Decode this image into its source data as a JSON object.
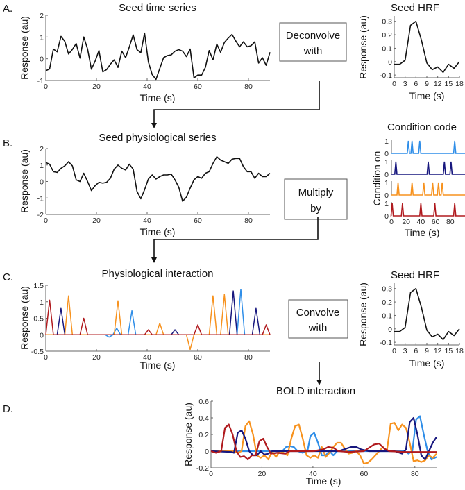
{
  "colors": {
    "blue": "#2f8ee8",
    "navy": "#17177e",
    "orange": "#f7921e",
    "red": "#b01a1e",
    "line": "#111111"
  },
  "panel_labels": [
    "A.",
    "B.",
    "C.",
    "D."
  ],
  "operations": {
    "deconvolve": [
      "Deconvolve",
      "with"
    ],
    "multiply": [
      "Multiply",
      "by"
    ],
    "convolve": [
      "Convolve",
      "with"
    ]
  },
  "chart_data": [
    {
      "id": "seed_time_series",
      "type": "line",
      "title": "Seed time series",
      "xlabel": "Time (s)",
      "ylabel": "Response (au)",
      "xlim": [
        0,
        88.5
      ],
      "ylim": [
        -1,
        2
      ],
      "xticks": [
        0,
        20,
        40,
        60,
        80
      ],
      "yticks": [
        -1,
        0,
        1,
        2
      ],
      "dt": 1.5,
      "series": [
        {
          "name": "seed",
          "color": "line",
          "values": [
            -0.55,
            -0.47,
            0.45,
            0.32,
            1.03,
            0.8,
            0.22,
            0.43,
            0.7,
            0.03,
            1.0,
            0.45,
            -0.48,
            -0.1,
            0.38,
            -0.6,
            -0.5,
            -0.25,
            -0.05,
            -0.4,
            0.35,
            0.05,
            0.55,
            1.1,
            0.42,
            0.28,
            1.18,
            -0.15,
            -0.73,
            -0.95,
            -0.45,
            0.05,
            0.15,
            0.18,
            0.35,
            0.42,
            0.35,
            0.1,
            0.45,
            -0.88,
            -0.75,
            -0.75,
            -0.4,
            0.38,
            -0.05,
            0.68,
            0.3,
            0.75,
            0.95,
            1.12,
            0.82,
            0.55,
            0.78,
            0.55,
            0.6,
            0.78,
            -0.2,
            0.05,
            -0.3,
            0.3
          ]
        }
      ]
    },
    {
      "id": "seed_hrf_a",
      "type": "line",
      "title": "Seed HRF",
      "xlabel": "Time (s)",
      "ylabel": "Response (au)",
      "xlim": [
        0,
        18
      ],
      "ylim": [
        -0.12,
        0.34
      ],
      "xticks": [
        0,
        3,
        6,
        9,
        12,
        15,
        18
      ],
      "yticks": [
        -0.1,
        0,
        0.1,
        0.2,
        0.3
      ],
      "dt": 1.5,
      "series": [
        {
          "name": "hrf",
          "color": "line",
          "values": [
            -0.02,
            -0.02,
            0.01,
            0.27,
            0.3,
            0.16,
            -0.01,
            -0.06,
            -0.04,
            -0.08,
            -0.02,
            -0.05,
            0.0
          ]
        }
      ]
    },
    {
      "id": "seed_physiological_series",
      "type": "line",
      "title": "Seed physiological series",
      "xlabel": "Time (s)",
      "ylabel": "Response (au)",
      "xlim": [
        0,
        88.5
      ],
      "ylim": [
        -2,
        2
      ],
      "xticks": [
        0,
        20,
        40,
        60,
        80
      ],
      "yticks": [
        -2,
        -1,
        0,
        1,
        2
      ],
      "dt": 1.5,
      "series": [
        {
          "name": "physio",
          "color": "line",
          "values": [
            1.15,
            1.05,
            0.6,
            0.55,
            0.8,
            0.95,
            1.2,
            0.95,
            0.1,
            0.0,
            0.5,
            0.0,
            -0.55,
            -0.25,
            -0.05,
            -0.1,
            -0.05,
            0.2,
            0.75,
            1.0,
            0.8,
            0.7,
            1.05,
            0.75,
            -0.6,
            -1.05,
            -0.5,
            0.15,
            0.4,
            0.15,
            0.3,
            0.4,
            0.4,
            0.45,
            0.1,
            -0.35,
            -1.2,
            -0.95,
            -0.4,
            0.1,
            0.3,
            0.2,
            0.5,
            0.6,
            1.1,
            1.5,
            1.3,
            1.2,
            1.1,
            1.35,
            1.4,
            1.4,
            0.9,
            0.6,
            0.6,
            0.2,
            0.5,
            0.3,
            0.3,
            0.5
          ]
        }
      ]
    },
    {
      "id": "condition_code",
      "type": "line",
      "title": "Condition code",
      "xlabel": "Time (s)",
      "ylabel": "Condition on",
      "xlim": [
        0,
        100
      ],
      "ylim": [
        0,
        1
      ],
      "xticks": [
        0,
        20,
        40,
        60,
        80
      ],
      "yticks": [
        0,
        1
      ],
      "series": [
        {
          "name": "condition 1",
          "color": "blue",
          "onsets": [
            23,
            28,
            38.5,
            86
          ]
        },
        {
          "name": "condition 2",
          "color": "navy",
          "onsets": [
            6,
            50,
            72,
            81
          ]
        },
        {
          "name": "condition 3",
          "color": "orange",
          "onsets": [
            9,
            28,
            44,
            56,
            64,
            69
          ]
        },
        {
          "name": "condition 4",
          "color": "red",
          "onsets": [
            1,
            15,
            40,
            59,
            86
          ]
        }
      ]
    },
    {
      "id": "physiological_interaction",
      "type": "line",
      "title": "Physiological interaction",
      "xlabel": "Time (s)",
      "ylabel": "Response (au)",
      "xlim": [
        0,
        88.5
      ],
      "ylim": [
        -0.5,
        1.5
      ],
      "xticks": [
        0,
        20,
        40,
        60,
        80
      ],
      "yticks": [
        -0.5,
        0,
        0.5,
        1,
        1.5
      ],
      "series": [
        {
          "name": "condition 1",
          "color": "blue",
          "peaks": [
            [
              25,
              -0.07
            ],
            [
              28,
              0.2
            ],
            [
              34,
              0.73
            ],
            [
              77,
              1.38
            ]
          ]
        },
        {
          "name": "condition 2",
          "color": "navy",
          "peaks": [
            [
              6,
              0.8
            ],
            [
              51,
              0.15
            ],
            [
              74,
              1.33
            ],
            [
              83,
              0.8
            ]
          ]
        },
        {
          "name": "condition 3",
          "color": "orange",
          "peaks": [
            [
              9,
              1.18
            ],
            [
              28.5,
              1.03
            ],
            [
              45,
              0.35
            ],
            [
              57,
              -0.45
            ],
            [
              66,
              1.18
            ],
            [
              70.5,
              1.22
            ]
          ]
        },
        {
          "name": "condition 4",
          "color": "red",
          "peaks": [
            [
              1.5,
              1.05
            ],
            [
              15,
              0.5
            ],
            [
              40.5,
              0.15
            ],
            [
              60,
              0.3
            ],
            [
              87,
              0.3
            ]
          ]
        }
      ]
    },
    {
      "id": "seed_hrf_c",
      "type": "line",
      "title": "Seed HRF",
      "xlabel": "Time (s)",
      "ylabel": "Response (au)",
      "xlim": [
        0,
        18
      ],
      "ylim": [
        -0.12,
        0.34
      ],
      "xticks": [
        0,
        3,
        6,
        9,
        12,
        15,
        18
      ],
      "yticks": [
        -0.1,
        0,
        0.1,
        0.2,
        0.3
      ],
      "dt": 1.5,
      "series": [
        {
          "name": "hrf",
          "color": "line",
          "values": [
            -0.02,
            -0.02,
            0.01,
            0.27,
            0.3,
            0.16,
            -0.01,
            -0.06,
            -0.04,
            -0.08,
            -0.02,
            -0.05,
            0.0
          ]
        }
      ]
    },
    {
      "id": "bold_interaction",
      "type": "line",
      "title": "BOLD interaction",
      "xlabel": "Time (s)",
      "ylabel": "Response (au)",
      "xlim": [
        0,
        88.5
      ],
      "ylim": [
        -0.2,
        0.6
      ],
      "xticks": [
        0,
        20,
        40,
        60,
        80
      ],
      "yticks": [
        -0.2,
        0,
        0.2,
        0.4,
        0.6
      ],
      "series": [
        {
          "name": "condition 1",
          "color": "blue",
          "points": [
            [
              0,
              0
            ],
            [
              28,
              0
            ],
            [
              29.5,
              0.05
            ],
            [
              31,
              0.06
            ],
            [
              32.5,
              0.05
            ],
            [
              34,
              0
            ],
            [
              36,
              -0.02
            ],
            [
              38,
              0.02
            ],
            [
              39,
              0.18
            ],
            [
              40.5,
              0.22
            ],
            [
              42,
              0.1
            ],
            [
              43.5,
              -0.05
            ],
            [
              45,
              -0.05
            ],
            [
              46.5,
              0
            ],
            [
              48,
              -0.05
            ],
            [
              49.5,
              0
            ],
            [
              52,
              0
            ],
            [
              76,
              0
            ],
            [
              77.5,
              -0.03
            ],
            [
              79,
              0
            ],
            [
              80.5,
              0.38
            ],
            [
              82,
              0.42
            ],
            [
              83.5,
              0.2
            ],
            [
              85,
              0
            ],
            [
              86.5,
              -0.1
            ],
            [
              88.5,
              -0.07
            ]
          ]
        },
        {
          "name": "condition 3",
          "color": "orange",
          "points": [
            [
              0,
              0
            ],
            [
              9,
              0
            ],
            [
              10.5,
              -0.02
            ],
            [
              12,
              0
            ],
            [
              13.5,
              0.3
            ],
            [
              15,
              0.36
            ],
            [
              16.5,
              0.2
            ],
            [
              18,
              -0.05
            ],
            [
              19.5,
              -0.08
            ],
            [
              21,
              -0.05
            ],
            [
              22.5,
              -0.1
            ],
            [
              24,
              0
            ],
            [
              25.5,
              -0.07
            ],
            [
              27,
              0
            ],
            [
              28.5,
              -0.02
            ],
            [
              30,
              -0.05
            ],
            [
              31.5,
              0.15
            ],
            [
              33,
              0.3
            ],
            [
              34.5,
              0.32
            ],
            [
              36,
              0.15
            ],
            [
              37.5,
              -0.05
            ],
            [
              39,
              -0.08
            ],
            [
              40.5,
              -0.05
            ],
            [
              42,
              -0.08
            ],
            [
              43.5,
              0.05
            ],
            [
              45,
              -0.07
            ],
            [
              46.5,
              -0.02
            ],
            [
              48,
              0.05
            ],
            [
              49.5,
              0.1
            ],
            [
              51,
              0.1
            ],
            [
              52.5,
              0.03
            ],
            [
              54,
              -0.03
            ],
            [
              55.5,
              -0.02
            ],
            [
              57,
              0
            ],
            [
              58.5,
              -0.05
            ],
            [
              60,
              -0.15
            ],
            [
              61.5,
              -0.14
            ],
            [
              63,
              -0.1
            ],
            [
              64.5,
              -0.05
            ],
            [
              66,
              0
            ],
            [
              67.5,
              0.05
            ],
            [
              69,
              0
            ],
            [
              70.5,
              0.33
            ],
            [
              72,
              0.34
            ],
            [
              73.5,
              0.25
            ],
            [
              75,
              0.32
            ],
            [
              76.5,
              0.28
            ],
            [
              78,
              0.1
            ],
            [
              79.5,
              -0.12
            ],
            [
              81,
              -0.11
            ],
            [
              82.5,
              -0.13
            ],
            [
              84,
              -0.11
            ],
            [
              85.5,
              -0.05
            ],
            [
              87,
              -0.08
            ],
            [
              88.5,
              -0.03
            ]
          ]
        },
        {
          "name": "condition 2",
          "color": "navy",
          "points": [
            [
              0,
              0
            ],
            [
              8,
              -0.01
            ],
            [
              9,
              -0.02
            ],
            [
              10.5,
              0.22
            ],
            [
              12,
              0.25
            ],
            [
              13.5,
              0.15
            ],
            [
              15,
              0
            ],
            [
              16.5,
              -0.05
            ],
            [
              18,
              -0.05
            ],
            [
              19.5,
              0
            ],
            [
              21,
              -0.04
            ],
            [
              22.5,
              -0.03
            ],
            [
              24,
              0
            ],
            [
              50,
              0
            ],
            [
              53,
              0.03
            ],
            [
              55,
              0.05
            ],
            [
              57,
              0.05
            ],
            [
              59,
              0.02
            ],
            [
              62,
              0
            ],
            [
              72,
              0
            ],
            [
              75,
              -0.03
            ],
            [
              76.5,
              0.02
            ],
            [
              78,
              0.35
            ],
            [
              79.5,
              0.4
            ],
            [
              81,
              0.2
            ],
            [
              82.5,
              -0.05
            ],
            [
              84,
              -0.1
            ],
            [
              85.5,
              0
            ],
            [
              87,
              0.1
            ],
            [
              88.5,
              0.17
            ]
          ]
        },
        {
          "name": "condition 4",
          "color": "red",
          "points": [
            [
              0,
              0
            ],
            [
              2,
              -0.02
            ],
            [
              4,
              0
            ],
            [
              5.5,
              0.28
            ],
            [
              7,
              0.32
            ],
            [
              8.5,
              0.2
            ],
            [
              10,
              0
            ],
            [
              11.5,
              -0.07
            ],
            [
              13,
              -0.06
            ],
            [
              14.5,
              -0.1
            ],
            [
              16,
              -0.05
            ],
            [
              17.5,
              -0.05
            ],
            [
              19,
              0.12
            ],
            [
              20.5,
              0.15
            ],
            [
              22,
              0.05
            ],
            [
              23.5,
              -0.03
            ],
            [
              26,
              -0.02
            ],
            [
              29,
              -0.03
            ],
            [
              31,
              0
            ],
            [
              40,
              0
            ],
            [
              44,
              0.02
            ],
            [
              46,
              0.05
            ],
            [
              48,
              0.04
            ],
            [
              50,
              0
            ],
            [
              54,
              -0.01
            ],
            [
              60,
              0
            ],
            [
              64,
              0.08
            ],
            [
              66,
              0.09
            ],
            [
              68,
              0.03
            ],
            [
              70,
              0
            ],
            [
              76,
              -0.01
            ],
            [
              88.5,
              -0.01
            ]
          ]
        }
      ]
    }
  ]
}
